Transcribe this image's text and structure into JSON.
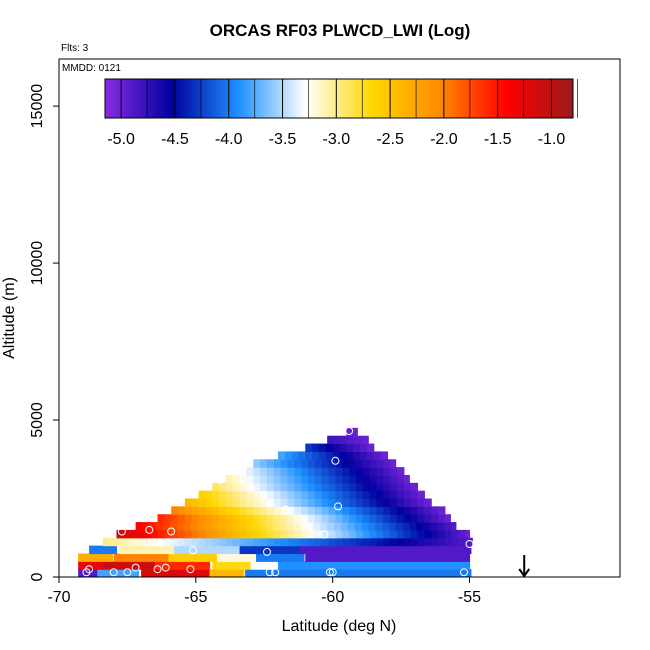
{
  "chart_data": {
    "type": "heatmap",
    "title": "ORCAS RF03 PLWCD_LWI (Log)",
    "annotations": {
      "flights": "Flts: 3",
      "date": "MMDD: 0121"
    },
    "xlabel": "Latitude (deg N)",
    "ylabel": "Altitude (m)",
    "xlim": [
      -70,
      -49.5
    ],
    "ylim": [
      0,
      16500
    ],
    "x_ticks": [
      -70,
      -65,
      -60,
      -55
    ],
    "x_tick_labels": [
      "-70",
      "-65",
      "-60",
      "-55"
    ],
    "y_ticks": [
      0,
      5000,
      10000,
      15000
    ],
    "y_tick_labels": [
      "0",
      "5000",
      "10000",
      "15000"
    ],
    "grid": false,
    "colorbar": {
      "range": [
        -5.15,
        -0.8
      ],
      "ticks": [
        -5.0,
        -4.5,
        -4.0,
        -3.5,
        -3.0,
        -2.5,
        -2.0,
        -1.5,
        -1.0
      ],
      "tick_labels": [
        "-5.0",
        "-4.5",
        "-4.0",
        "-3.5",
        "-3.0",
        "-2.5",
        "-2.0",
        "-1.5",
        "-1.0"
      ],
      "colors": [
        "#8a2be2",
        "#0000a0",
        "#1e90ff",
        "#ffffff",
        "#ffd700",
        "#ff8c00",
        "#ff0000",
        "#9b1a1a"
      ],
      "placement": "top-inside"
    },
    "grid_cell": {
      "dx_deg": 0.25,
      "dz_m": 250
    },
    "wedge": {
      "description": "triangular cloud region with values decreasing left-to-right",
      "rows": [
        {
          "z": 1000,
          "x0": -68.4,
          "x1": -54.9,
          "v0": -3.0,
          "v1": -4.9
        },
        {
          "z": 1250,
          "x0": -67.9,
          "x1": -55.0,
          "v0": -1.1,
          "v1": -5.0
        },
        {
          "z": 1500,
          "x0": -67.2,
          "x1": -55.5,
          "v0": -1.4,
          "v1": -4.9
        },
        {
          "z": 1750,
          "x0": -66.4,
          "x1": -55.7,
          "v0": -1.6,
          "v1": -5.0
        },
        {
          "z": 2000,
          "x0": -65.9,
          "x1": -55.9,
          "v0": -2.0,
          "v1": -5.0
        },
        {
          "z": 2250,
          "x0": -65.4,
          "x1": -56.3,
          "v0": -2.4,
          "v1": -5.0
        },
        {
          "z": 2500,
          "x0": -64.9,
          "x1": -56.6,
          "v0": -2.6,
          "v1": -5.0
        },
        {
          "z": 2750,
          "x0": -64.4,
          "x1": -56.9,
          "v0": -2.9,
          "v1": -5.0
        },
        {
          "z": 3000,
          "x0": -63.9,
          "x1": -57.2,
          "v0": -3.1,
          "v1": -5.0
        },
        {
          "z": 3250,
          "x0": -63.4,
          "x1": -57.4,
          "v0": -3.3,
          "v1": -5.0
        },
        {
          "z": 3500,
          "x0": -62.9,
          "x1": -57.7,
          "v0": -3.6,
          "v1": -5.0
        },
        {
          "z": 3750,
          "x0": -62.0,
          "x1": -58.0,
          "v0": -3.8,
          "v1": -5.0
        },
        {
          "z": 4000,
          "x0": -61.0,
          "x1": -58.4,
          "v0": -4.3,
          "v1": -5.0
        },
        {
          "z": 4250,
          "x0": -60.2,
          "x1": -58.7,
          "v0": -4.8,
          "v1": -5.0
        },
        {
          "z": 4500,
          "x0": -59.5,
          "x1": -59.1,
          "v0": -5.0,
          "v1": -5.0
        }
      ]
    },
    "bands": [
      {
        "z": 0,
        "segments": [
          {
            "x0": -69.3,
            "x1": -68.6,
            "v": -4.9
          },
          {
            "x0": -68.6,
            "x1": -67.0,
            "v": -3.8
          },
          {
            "x0": -67.0,
            "x1": -64.5,
            "v": -1.2
          },
          {
            "x0": -64.5,
            "x1": -63.2,
            "v": -2.4
          },
          {
            "x0": -63.2,
            "x1": -54.9,
            "v": -4.0
          }
        ]
      },
      {
        "z": 250,
        "segments": [
          {
            "x0": -69.3,
            "x1": -68.4,
            "v": -1.3
          },
          {
            "x0": -68.4,
            "x1": -66.5,
            "v": -1.1
          },
          {
            "x0": -66.5,
            "x1": -64.4,
            "v": -1.6
          },
          {
            "x0": -64.4,
            "x1": -63.0,
            "v": -2.7
          },
          {
            "x0": -63.0,
            "x1": -62.0,
            "v": -3.3
          },
          {
            "x0": -62.0,
            "x1": -54.9,
            "v": -3.9
          }
        ]
      },
      {
        "z": 500,
        "segments": [
          {
            "x0": -69.3,
            "x1": -68.0,
            "v": -2.3
          },
          {
            "x0": -68.0,
            "x1": -66.0,
            "v": -2.0
          },
          {
            "x0": -66.0,
            "x1": -64.2,
            "v": -2.6
          },
          {
            "x0": -64.2,
            "x1": -62.8,
            "v": -3.2
          },
          {
            "x0": -62.8,
            "x1": -61.0,
            "v": -4.0
          },
          {
            "x0": -61.0,
            "x1": -54.9,
            "v": -4.9
          }
        ]
      },
      {
        "z": 750,
        "segments": [
          {
            "x0": -68.9,
            "x1": -67.8,
            "v": -4.0
          },
          {
            "x0": -67.8,
            "x1": -65.8,
            "v": -3.1
          },
          {
            "x0": -65.8,
            "x1": -63.4,
            "v": -3.5
          },
          {
            "x0": -63.4,
            "x1": -61.2,
            "v": -4.3
          },
          {
            "x0": -61.2,
            "x1": -54.9,
            "v": -4.9
          }
        ]
      }
    ],
    "points": [
      {
        "x": -69.0,
        "y": 150
      },
      {
        "x": -68.9,
        "y": 250
      },
      {
        "x": -68.0,
        "y": 150
      },
      {
        "x": -67.5,
        "y": 150
      },
      {
        "x": -67.2,
        "y": 300
      },
      {
        "x": -66.4,
        "y": 250
      },
      {
        "x": -66.1,
        "y": 300
      },
      {
        "x": -65.2,
        "y": 250
      },
      {
        "x": -62.3,
        "y": 150
      },
      {
        "x": -62.1,
        "y": 150
      },
      {
        "x": -60.1,
        "y": 150
      },
      {
        "x": -60.0,
        "y": 150
      },
      {
        "x": -55.2,
        "y": 150
      },
      {
        "x": -67.7,
        "y": 1450
      },
      {
        "x": -66.7,
        "y": 1500
      },
      {
        "x": -65.9,
        "y": 1450
      },
      {
        "x": -65.1,
        "y": 850
      },
      {
        "x": -62.4,
        "y": 800
      },
      {
        "x": -60.3,
        "y": 1350
      },
      {
        "x": -55.0,
        "y": 1050
      },
      {
        "x": -59.8,
        "y": 2250
      },
      {
        "x": -61.7,
        "y": 2150
      },
      {
        "x": -64.1,
        "y": 3100
      },
      {
        "x": -59.9,
        "y": 3700
      },
      {
        "x": -59.4,
        "y": 4650
      }
    ],
    "arrow": {
      "x": -53.0,
      "y_top": 700,
      "y_bottom": 0,
      "direction": "down"
    }
  }
}
